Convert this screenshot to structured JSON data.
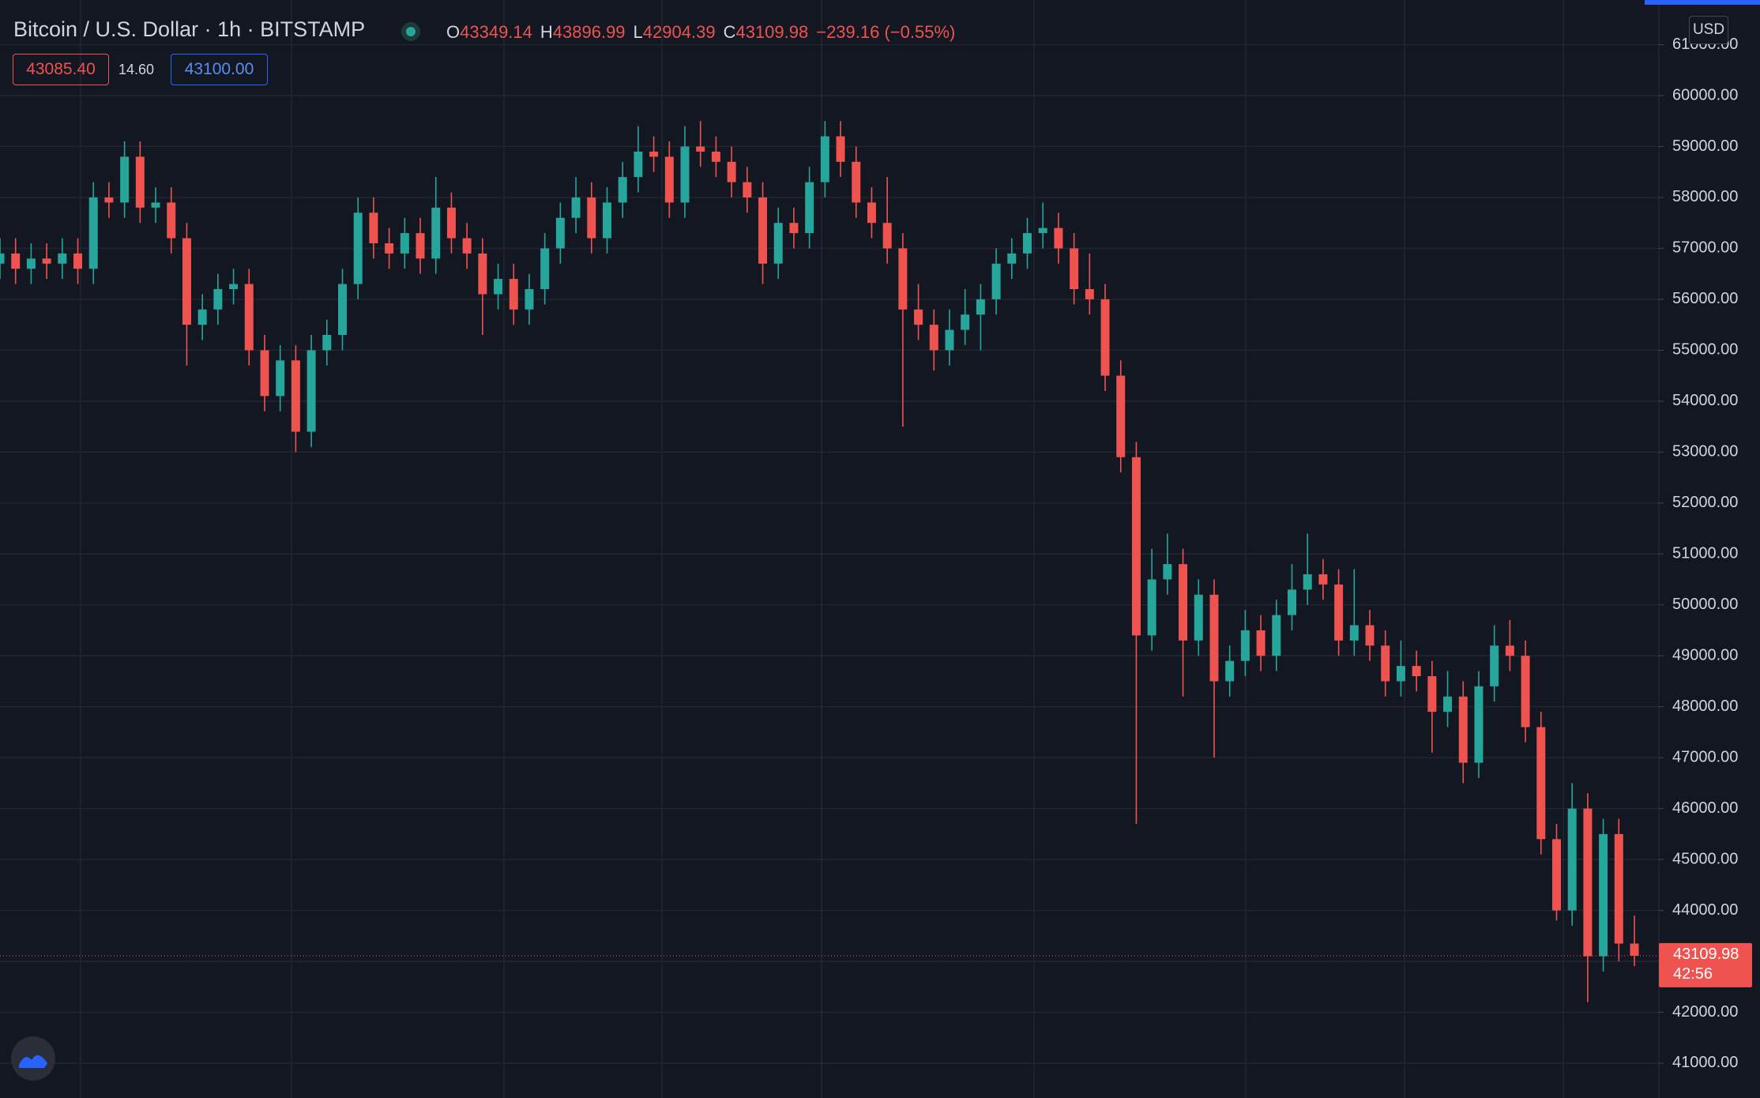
{
  "toolbar": {
    "symbol": "Bitcoin / U.S. Dollar · 1h · BITSTAMP",
    "ohlc": [
      {
        "key": "O",
        "value": "43349.14"
      },
      {
        "key": "H",
        "value": "43896.99"
      },
      {
        "key": "L",
        "value": "42904.39"
      },
      {
        "key": "C",
        "value": "43109.98"
      }
    ],
    "change": "−239.16 (−0.55%)",
    "bid": "43085.40",
    "spread": "14.60",
    "ask": "43100.00",
    "currency": "USD",
    "countdown": "42:56"
  },
  "chart_data": {
    "type": "candlestick",
    "up_color": "#26a69a",
    "down_color": "#ef5350",
    "grid": true,
    "ylim": [
      40317,
      61877
    ],
    "yticks": [
      {
        "value": 41000,
        "label": "41000.00"
      },
      {
        "value": 42000,
        "label": "42000.00"
      },
      {
        "value": 43000,
        "label": "43000.00"
      },
      {
        "value": 44000,
        "label": "44000.00"
      },
      {
        "value": 45000,
        "label": "45000.00"
      },
      {
        "value": 46000,
        "label": "46000.00"
      },
      {
        "value": 47000,
        "label": "47000.00"
      },
      {
        "value": 48000,
        "label": "48000.00"
      },
      {
        "value": 49000,
        "label": "49000.00"
      },
      {
        "value": 50000,
        "label": "50000.00"
      },
      {
        "value": 51000,
        "label": "51000.00"
      },
      {
        "value": 52000,
        "label": "52000.00"
      },
      {
        "value": 53000,
        "label": "53000.00"
      },
      {
        "value": 54000,
        "label": "54000.00"
      },
      {
        "value": 55000,
        "label": "55000.00"
      },
      {
        "value": 56000,
        "label": "56000.00"
      },
      {
        "value": 57000,
        "label": "57000.00"
      },
      {
        "value": 58000,
        "label": "58000.00"
      },
      {
        "value": 59000,
        "label": "59000.00"
      },
      {
        "value": 60000,
        "label": "60000.00"
      },
      {
        "value": 61000,
        "label": "61000.00"
      }
    ],
    "last_price": 43109.98,
    "open": [
      56700,
      56900,
      56600,
      56800,
      56700,
      56900,
      56600,
      58000,
      57900,
      58800,
      57800,
      57900,
      57200,
      55500,
      55800,
      56200,
      56300,
      55000,
      54100,
      54800,
      53400,
      55000,
      55300,
      56300,
      57700,
      57100,
      56900,
      57300,
      56800,
      57800,
      57200,
      56900,
      56100,
      56400,
      55800,
      56200,
      57000,
      57600,
      58000,
      57200,
      57900,
      58400,
      58900,
      58800,
      57900,
      59000,
      58900,
      58700,
      58300,
      58000,
      56700,
      57500,
      57300,
      58300,
      59200,
      58700,
      57900,
      57500,
      57000,
      55800,
      55500,
      55000,
      55400,
      55700,
      56000,
      56700,
      56900,
      57300,
      57400,
      57000,
      56200,
      56000,
      54500,
      52900,
      49400,
      50500,
      50800,
      49300,
      50200,
      48500,
      48900,
      49500,
      49000,
      49800,
      50300,
      50600,
      50400,
      49300,
      49600,
      49200,
      48500,
      48800,
      48600,
      47900,
      48200,
      46900,
      48400,
      49200,
      49000,
      47600,
      45400,
      44000,
      46000,
      43100,
      45500,
      43349.14
    ],
    "high": [
      57200,
      57200,
      57100,
      57100,
      57200,
      57200,
      58300,
      58300,
      59100,
      59100,
      58200,
      58200,
      57500,
      56100,
      56500,
      56600,
      56600,
      55300,
      55100,
      55100,
      55300,
      55600,
      56600,
      58000,
      58000,
      57400,
      57600,
      57600,
      58400,
      58100,
      57500,
      57200,
      56700,
      56700,
      56500,
      57300,
      57900,
      58400,
      58300,
      58200,
      58700,
      59400,
      59200,
      59100,
      59400,
      59500,
      59200,
      59000,
      58600,
      58300,
      57800,
      57800,
      58600,
      59500,
      59500,
      59000,
      58200,
      58400,
      57300,
      56300,
      55800,
      55800,
      56200,
      56300,
      57000,
      57200,
      57600,
      57900,
      57700,
      57300,
      56900,
      56300,
      54800,
      53200,
      51100,
      51400,
      51100,
      50500,
      50500,
      49200,
      49900,
      49800,
      50100,
      50800,
      51400,
      50900,
      50700,
      50700,
      49900,
      49500,
      49300,
      49100,
      48900,
      48700,
      48500,
      48700,
      49600,
      49700,
      49300,
      47900,
      45700,
      46500,
      46300,
      45800,
      45800,
      43896.99
    ],
    "low": [
      56400,
      56300,
      56300,
      56400,
      56400,
      56300,
      56300,
      57600,
      57600,
      57500,
      57500,
      56900,
      54700,
      55200,
      55500,
      55900,
      54700,
      53800,
      53800,
      53000,
      53100,
      54700,
      55000,
      56000,
      56800,
      56600,
      56600,
      56500,
      56500,
      56900,
      56600,
      55300,
      55800,
      55500,
      55500,
      55900,
      56700,
      57300,
      56900,
      56900,
      57600,
      58100,
      58500,
      57600,
      57600,
      58600,
      58400,
      58000,
      57700,
      56300,
      56400,
      57000,
      57000,
      58000,
      58400,
      57600,
      57200,
      56700,
      53500,
      55200,
      54600,
      54700,
      55100,
      55000,
      55700,
      56400,
      56600,
      57000,
      56700,
      55900,
      55700,
      54200,
      52600,
      45700,
      49100,
      50200,
      48200,
      49000,
      47000,
      48200,
      48600,
      48700,
      48700,
      49500,
      50000,
      50100,
      49000,
      49000,
      48900,
      48200,
      48200,
      48300,
      47100,
      47600,
      46500,
      46600,
      48100,
      48700,
      47300,
      45100,
      43800,
      43700,
      42200,
      42800,
      43000,
      42904.39
    ],
    "close": [
      56900,
      56600,
      56800,
      56700,
      56900,
      56600,
      58000,
      57900,
      58800,
      57800,
      57900,
      57200,
      55500,
      55800,
      56200,
      56300,
      55000,
      54100,
      54800,
      53400,
      55000,
      55300,
      56300,
      57700,
      57100,
      56900,
      57300,
      56800,
      57800,
      57200,
      56900,
      56100,
      56400,
      55800,
      56200,
      57000,
      57600,
      58000,
      57200,
      57900,
      58400,
      58900,
      58800,
      57900,
      59000,
      58900,
      58700,
      58300,
      58000,
      56700,
      57500,
      57300,
      58300,
      59200,
      58700,
      57900,
      57500,
      57000,
      55800,
      55500,
      55000,
      55400,
      55700,
      56000,
      56700,
      56900,
      57300,
      57400,
      57000,
      56200,
      56000,
      54500,
      52900,
      49400,
      50500,
      50800,
      49300,
      50200,
      48500,
      48900,
      49500,
      49000,
      49800,
      50300,
      50600,
      50400,
      49300,
      49600,
      49200,
      48500,
      48800,
      48600,
      47900,
      48200,
      46900,
      48400,
      49200,
      49000,
      47600,
      45400,
      44000,
      46000,
      43100,
      45500,
      43349.14,
      43109.98
    ]
  }
}
